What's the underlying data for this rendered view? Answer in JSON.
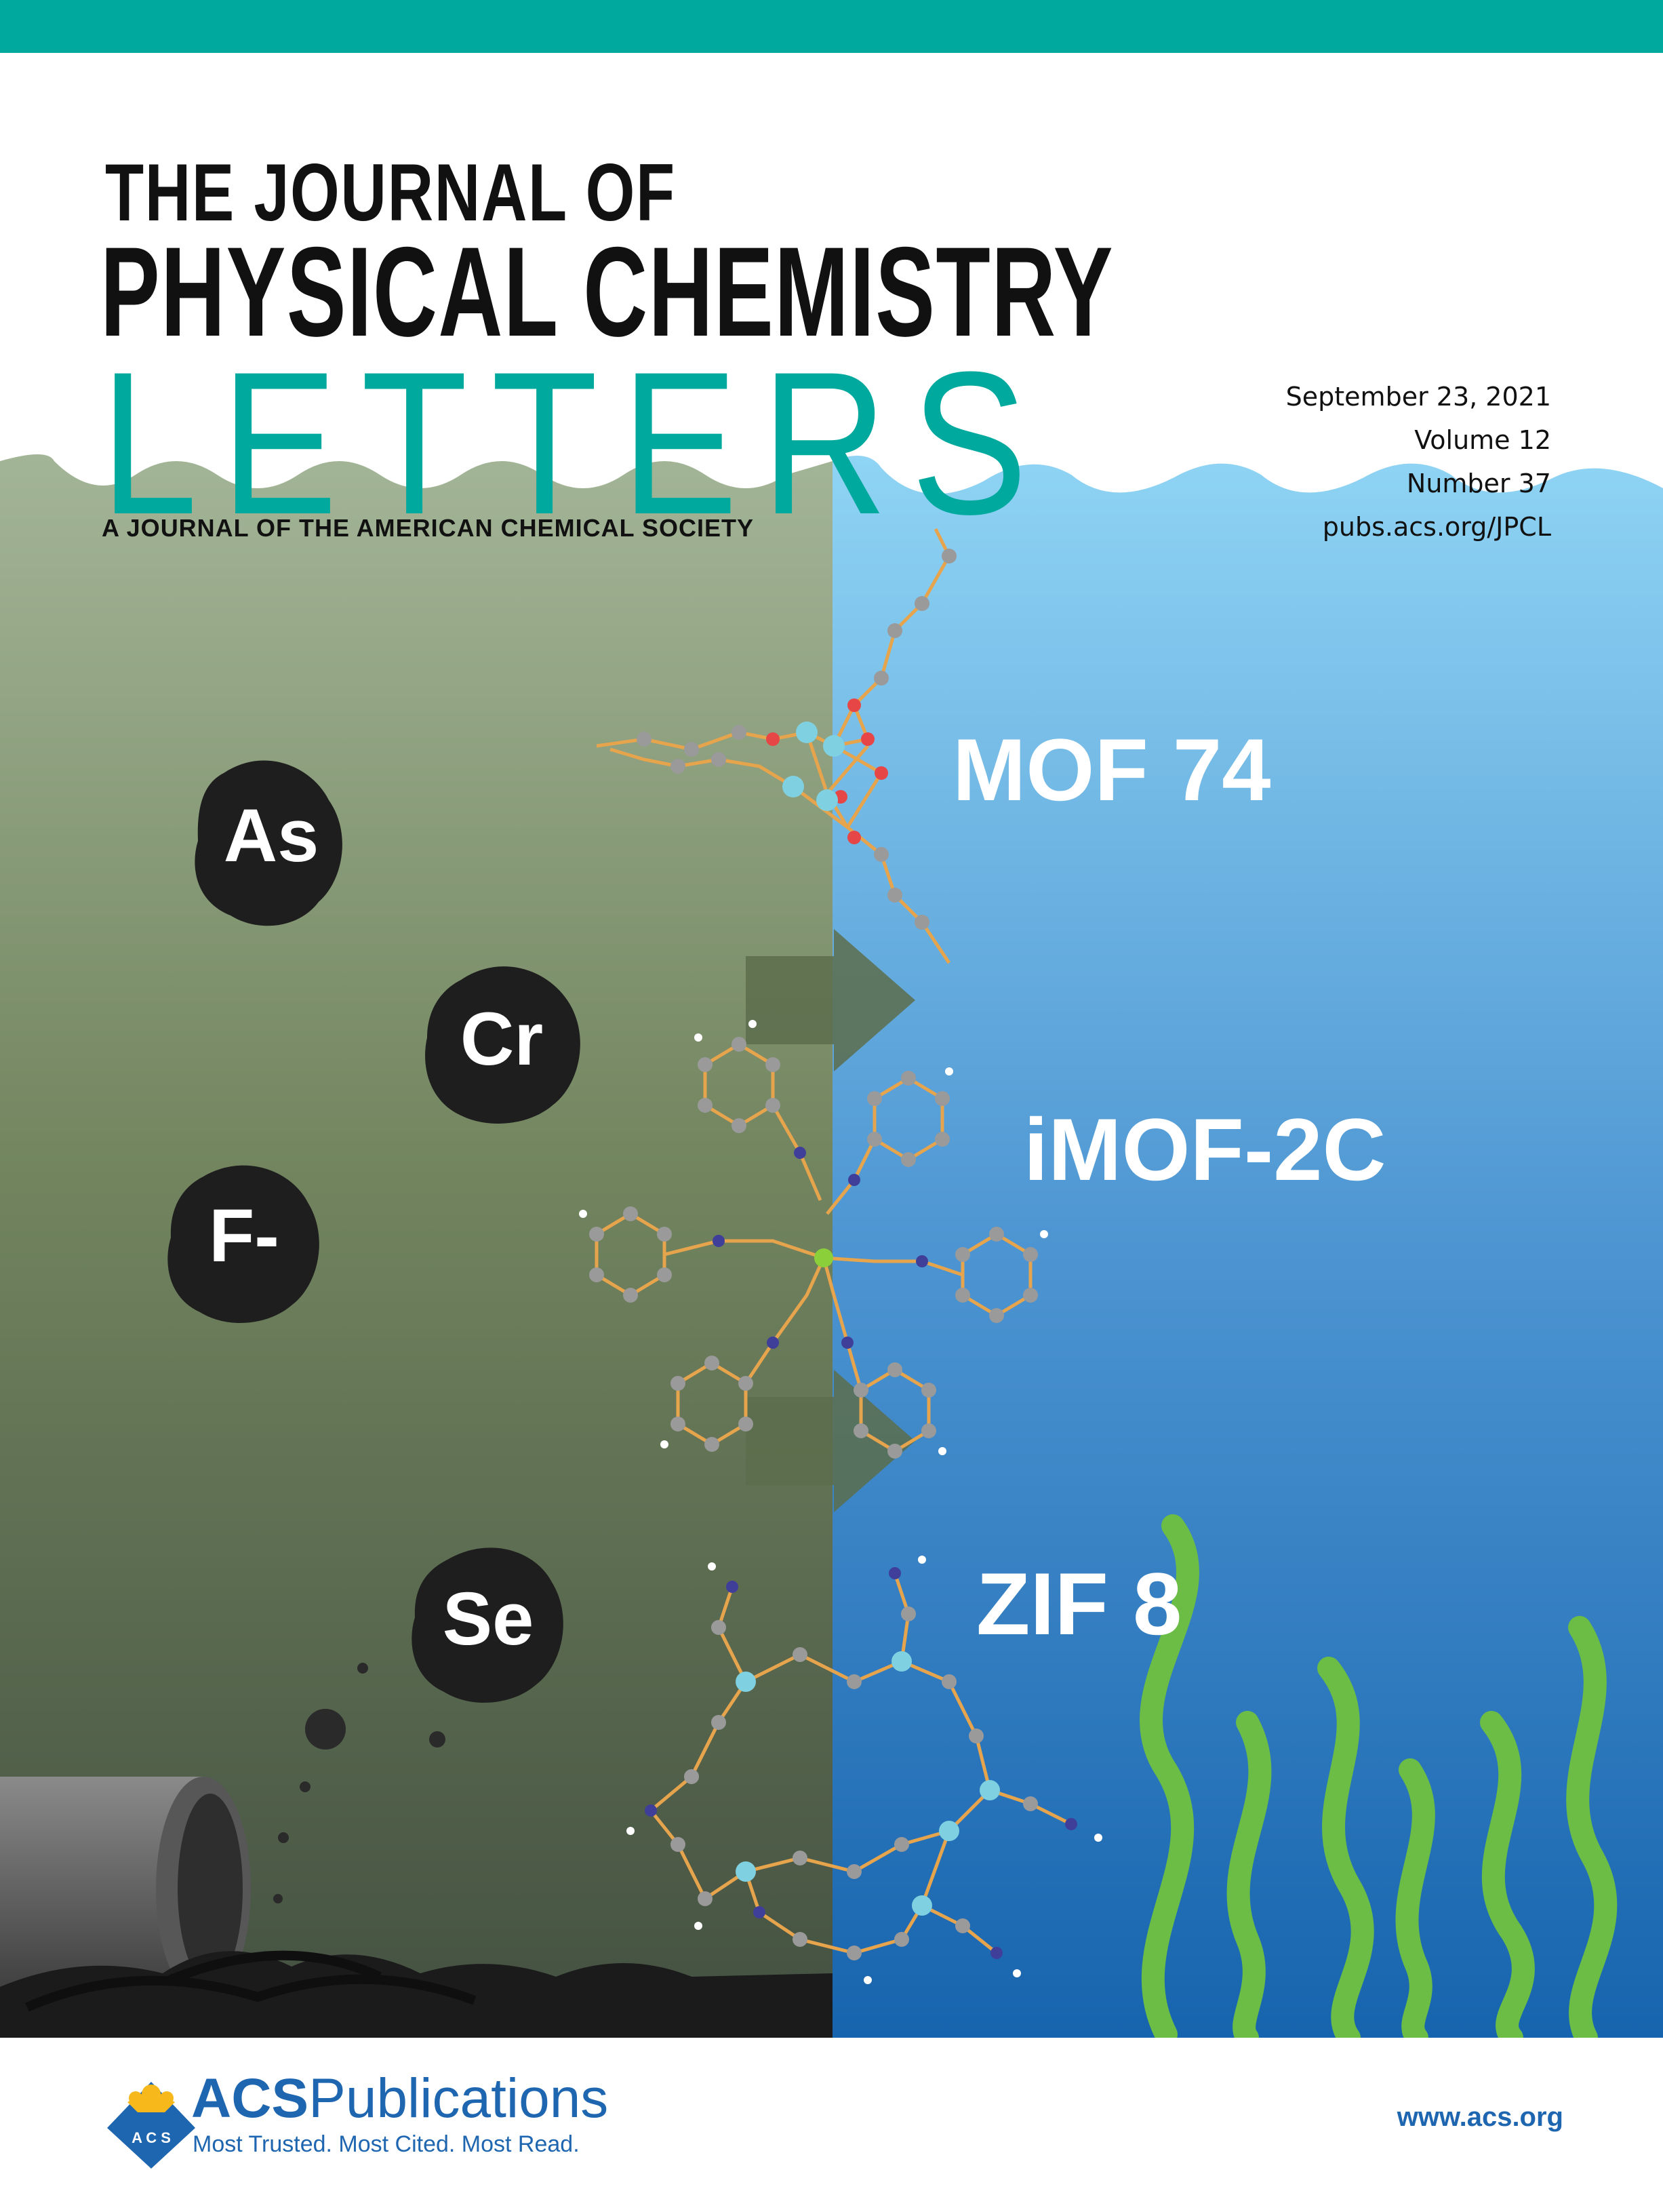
{
  "masthead": {
    "line1": "THE JOURNAL OF",
    "line2": "PHYSICAL CHEMISTRY",
    "line3": "LETTERS",
    "tagline": "A JOURNAL OF THE AMERICAN CHEMICAL SOCIETY"
  },
  "issue": {
    "date": "September 23, 2021",
    "volume": "Volume 12",
    "number": "Number 37",
    "url": "pubs.acs.org/JPCL"
  },
  "contaminants": [
    "As",
    "Cr",
    "F-",
    "Se"
  ],
  "frameworks": [
    "MOF 74",
    "iMOF-2C",
    "ZIF 8"
  ],
  "publisher": {
    "name_bold": "ACS",
    "name_rest": "Publications",
    "tagline": "Most Trusted. Most Cited. Most Read.",
    "website": "www.acs.org",
    "logo_text": "A C S"
  },
  "colors": {
    "accent": "#00a99d",
    "polluted_water": "#5f7050",
    "clean_water": "#3a86c8",
    "publisher_blue": "#1f66b0",
    "seaweed": "#6bbd45"
  }
}
